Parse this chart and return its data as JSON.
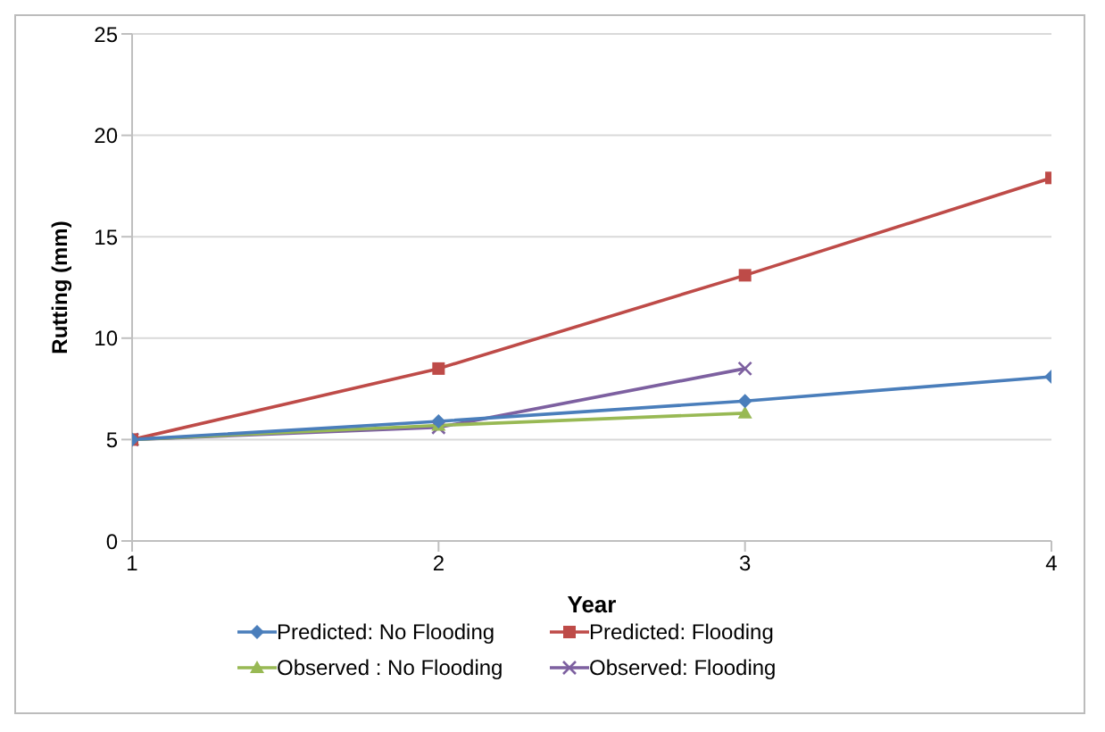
{
  "chart_data": {
    "type": "line",
    "xlabel": "Year",
    "ylabel": "Rutting (mm)",
    "x": [
      1,
      2,
      3,
      4
    ],
    "xlim": [
      1,
      4
    ],
    "xticks": [
      1,
      2,
      3,
      4
    ],
    "ylim": [
      0,
      25
    ],
    "yticks": [
      0,
      5,
      10,
      15,
      20,
      25
    ],
    "grid": "y",
    "legend": "bottom",
    "series": [
      {
        "name": "Predicted: No Flooding",
        "color": "#4a7ebb",
        "marker": "diamond",
        "values": [
          5,
          5.9,
          6.9,
          8.1
        ]
      },
      {
        "name": "Predicted: Flooding",
        "color": "#be4b48",
        "marker": "square",
        "values": [
          5,
          8.5,
          13.1,
          17.9
        ]
      },
      {
        "name": "Observed : No Flooding",
        "color": "#98b954",
        "marker": "triangle",
        "values": [
          5,
          5.7,
          6.3,
          null
        ]
      },
      {
        "name": "Observed: Flooding",
        "color": "#7d60a0",
        "marker": "cross",
        "values": [
          5,
          5.6,
          8.5,
          null
        ]
      }
    ]
  }
}
